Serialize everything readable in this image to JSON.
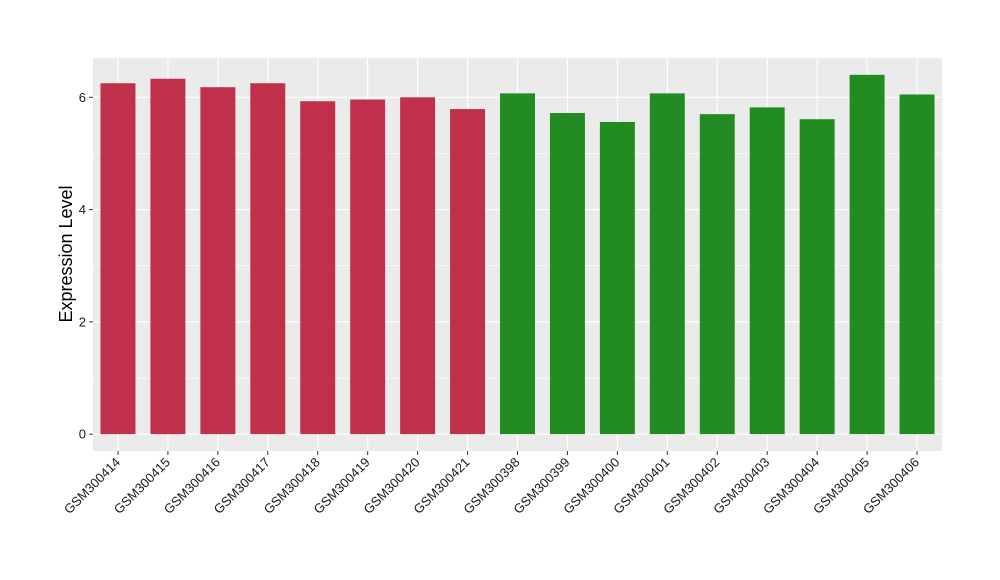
{
  "chart_data": {
    "type": "bar",
    "ylabel": "Expression Level",
    "xlabel": "",
    "ylim": [
      -0.3,
      6.7
    ],
    "yticks": [
      0,
      2,
      4,
      6
    ],
    "grid": true,
    "categories": [
      "GSM300414",
      "GSM300415",
      "GSM300416",
      "GSM300417",
      "GSM300418",
      "GSM300419",
      "GSM300420",
      "GSM300421",
      "GSM300398",
      "GSM300399",
      "GSM300400",
      "GSM300401",
      "GSM300402",
      "GSM300403",
      "GSM300404",
      "GSM300405",
      "GSM300406"
    ],
    "values": [
      6.25,
      6.33,
      6.18,
      6.25,
      5.93,
      5.96,
      6.0,
      5.79,
      6.07,
      5.72,
      5.56,
      6.07,
      5.7,
      5.82,
      5.61,
      6.4,
      6.05
    ],
    "groups": [
      "a",
      "a",
      "a",
      "a",
      "a",
      "a",
      "a",
      "a",
      "b",
      "b",
      "b",
      "b",
      "b",
      "b",
      "b",
      "b",
      "b"
    ],
    "group_colors": {
      "a": "#c0304a",
      "b": "#228b22"
    },
    "panel_background": "#ebebeb",
    "grid_color": "#ffffff"
  }
}
